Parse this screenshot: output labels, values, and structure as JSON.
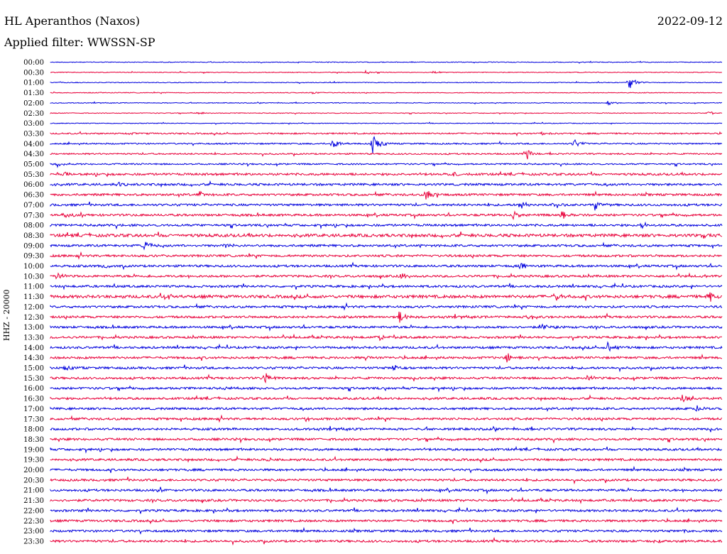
{
  "header": {
    "station": "HL Aperanthos (Naxos)",
    "date": "2022-09-12",
    "filter": "Applied filter: WWSSN-SP",
    "channel": "HHZ - 20000"
  },
  "colors": {
    "even_row": "#0000dd",
    "odd_row": "#e8003a"
  },
  "chart_data": {
    "type": "line",
    "title": "HL Aperanthos (Naxos)",
    "subtitle": "Applied filter: WWSSN-SP",
    "ylabel": "HHZ - 20000",
    "xlabel": "",
    "categories": [
      "00:00",
      "00:30",
      "01:00",
      "01:30",
      "02:00",
      "02:30",
      "03:00",
      "03:30",
      "04:00",
      "04:30",
      "05:00",
      "05:30",
      "06:00",
      "06:30",
      "07:00",
      "07:30",
      "08:00",
      "08:30",
      "09:00",
      "09:30",
      "10:00",
      "10:30",
      "11:00",
      "11:30",
      "12:00",
      "12:30",
      "13:00",
      "13:30",
      "14:00",
      "14:30",
      "15:00",
      "15:30",
      "16:00",
      "16:30",
      "17:00",
      "17:30",
      "18:00",
      "18:30",
      "19:00",
      "19:30",
      "20:00",
      "20:30",
      "21:00",
      "21:30",
      "22:00",
      "22:30",
      "23:00",
      "23:30"
    ],
    "row_colors": [
      "blue",
      "red"
    ],
    "noise_level": [
      1,
      1,
      1,
      1,
      1,
      1,
      1,
      2,
      2,
      2,
      2,
      3,
      3,
      3,
      3,
      3,
      3,
      4,
      3,
      3,
      3,
      3,
      3,
      4,
      3,
      3,
      3,
      3,
      3,
      3,
      3,
      3,
      3,
      3,
      3,
      3,
      3,
      3,
      3,
      3,
      3,
      3,
      3,
      3,
      3,
      3,
      3,
      3
    ],
    "events": [
      {
        "row": 1,
        "t": 0.47,
        "amp": 3
      },
      {
        "row": 1,
        "t": 0.57,
        "amp": 2
      },
      {
        "row": 2,
        "t": 0.86,
        "amp": 12
      },
      {
        "row": 3,
        "t": 0.39,
        "amp": 2
      },
      {
        "row": 4,
        "t": 0.83,
        "amp": 4
      },
      {
        "row": 5,
        "t": 0.22,
        "amp": 2
      },
      {
        "row": 5,
        "t": 0.98,
        "amp": 3
      },
      {
        "row": 7,
        "t": 0.12,
        "amp": 3
      },
      {
        "row": 7,
        "t": 0.73,
        "amp": 3
      },
      {
        "row": 8,
        "t": 0.42,
        "amp": 8
      },
      {
        "row": 8,
        "t": 0.48,
        "amp": 14
      },
      {
        "row": 8,
        "t": 0.78,
        "amp": 6
      },
      {
        "row": 9,
        "t": 0.71,
        "amp": 8
      },
      {
        "row": 10,
        "t": 0.01,
        "amp": 5
      },
      {
        "row": 11,
        "t": 0.02,
        "amp": 3
      },
      {
        "row": 11,
        "t": 0.6,
        "amp": 5
      },
      {
        "row": 12,
        "t": 0.1,
        "amp": 3
      },
      {
        "row": 13,
        "t": 0.22,
        "amp": 6
      },
      {
        "row": 13,
        "t": 0.56,
        "amp": 9
      },
      {
        "row": 14,
        "t": 0.7,
        "amp": 7
      },
      {
        "row": 14,
        "t": 0.75,
        "amp": 6
      },
      {
        "row": 14,
        "t": 0.81,
        "amp": 8
      },
      {
        "row": 15,
        "t": 0.02,
        "amp": 5
      },
      {
        "row": 15,
        "t": 0.69,
        "amp": 7
      },
      {
        "row": 15,
        "t": 0.76,
        "amp": 8
      },
      {
        "row": 16,
        "t": 0.88,
        "amp": 5
      },
      {
        "row": 17,
        "t": 0.97,
        "amp": 4
      },
      {
        "row": 18,
        "t": 0.14,
        "amp": 8
      },
      {
        "row": 18,
        "t": 0.26,
        "amp": 4
      },
      {
        "row": 20,
        "t": 0.08,
        "amp": 6
      },
      {
        "row": 20,
        "t": 0.7,
        "amp": 6
      },
      {
        "row": 21,
        "t": 0.01,
        "amp": 5
      },
      {
        "row": 21,
        "t": 0.52,
        "amp": 5
      },
      {
        "row": 21,
        "t": 0.97,
        "amp": 4
      },
      {
        "row": 23,
        "t": 0.17,
        "amp": 6
      },
      {
        "row": 23,
        "t": 0.75,
        "amp": 7
      },
      {
        "row": 23,
        "t": 0.98,
        "amp": 8
      },
      {
        "row": 25,
        "t": 0.52,
        "amp": 9
      },
      {
        "row": 25,
        "t": 0.71,
        "amp": 5
      },
      {
        "row": 26,
        "t": 0.73,
        "amp": 5
      },
      {
        "row": 27,
        "t": 0.49,
        "amp": 4
      },
      {
        "row": 28,
        "t": 0.83,
        "amp": 8
      },
      {
        "row": 29,
        "t": 0.68,
        "amp": 8
      },
      {
        "row": 29,
        "t": 0.47,
        "amp": 4
      },
      {
        "row": 30,
        "t": 0.02,
        "amp": 4
      },
      {
        "row": 30,
        "t": 0.51,
        "amp": 6
      },
      {
        "row": 31,
        "t": 0.32,
        "amp": 7
      },
      {
        "row": 31,
        "t": 0.8,
        "amp": 4
      },
      {
        "row": 32,
        "t": 0.26,
        "amp": 3
      },
      {
        "row": 33,
        "t": 0.94,
        "amp": 7
      },
      {
        "row": 34,
        "t": 0.96,
        "amp": 6
      },
      {
        "row": 35,
        "t": 0.38,
        "amp": 3
      },
      {
        "row": 39,
        "t": 0.32,
        "amp": 3
      },
      {
        "row": 42,
        "t": 0.16,
        "amp": 2
      },
      {
        "row": 46,
        "t": 0.94,
        "amp": 3
      },
      {
        "row": 47,
        "t": 0.9,
        "amp": 2
      }
    ]
  }
}
